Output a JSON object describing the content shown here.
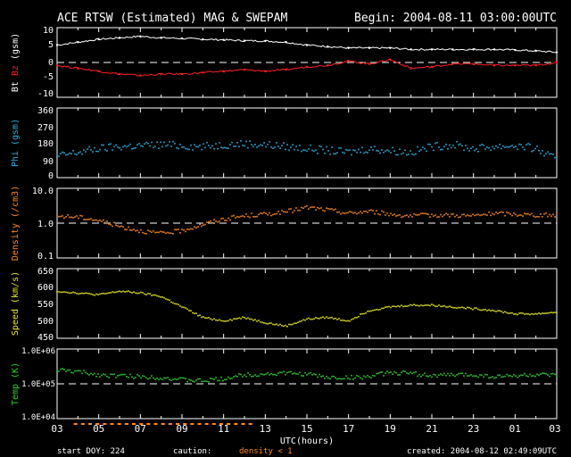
{
  "header": {
    "title": "ACE RTSW (Estimated) MAG & SWEPAM",
    "begin": "Begin: 2004-08-11 03:00:00UTC"
  },
  "footer": {
    "start_doy": "start DOY: 224",
    "caution": "caution:",
    "density_note": "density < 1",
    "created": "created: 2004-08-12 02:49:09UTC"
  },
  "x_axis": {
    "label": "UTC(hours)",
    "tick_labels": [
      "03",
      "05",
      "07",
      "09",
      "11",
      "13",
      "15",
      "17",
      "19",
      "21",
      "23",
      "01",
      "03"
    ]
  },
  "colors": {
    "bt": "#ffffff",
    "bz": "#ff2020",
    "phi": "#30b0e0",
    "density": "#ff8a20",
    "speed": "#e8e820",
    "temp": "#30d030",
    "axis": "#ffffff",
    "caution": "#ff8a20"
  },
  "panels": {
    "mag": {
      "ylabel_prefix": "Bt  ",
      "ylabel_bz": "Bz",
      "ylabel_suffix": "  (gsm)",
      "ticks": [
        "10",
        "5",
        "0",
        "-5",
        "-10"
      ]
    },
    "phi": {
      "ylabel": "Phi (gsm)",
      "ticks": [
        "360",
        "270",
        "180",
        "90",
        "0"
      ]
    },
    "density": {
      "ylabel": "Density (/cm3)",
      "ticks": [
        "10.0",
        "1.0",
        "0.1"
      ]
    },
    "speed": {
      "ylabel": "Speed (km/s)",
      "ticks": [
        "650",
        "600",
        "550",
        "500",
        "450"
      ]
    },
    "temp": {
      "ylabel": "Temp (K)",
      "ticks": [
        "1.0E+06",
        "1.0E+05",
        "1.0E+04"
      ]
    }
  },
  "chart_data": [
    {
      "type": "line",
      "ylim": [
        -12,
        12
      ],
      "reference_line": 0,
      "series": [
        {
          "name": "Bt",
          "x": [
            0,
            1,
            2,
            3,
            4,
            5,
            6,
            7,
            8,
            9,
            10,
            11,
            12,
            13,
            14,
            15,
            16,
            17,
            18,
            19,
            20,
            21,
            22,
            23,
            24
          ],
          "values": [
            6,
            7,
            8,
            8.5,
            9,
            8.5,
            8.3,
            8,
            7.8,
            7.5,
            7.4,
            7,
            6,
            5.5,
            5,
            5,
            5,
            4.5,
            4.5,
            4.5,
            4.5,
            4.5,
            4.3,
            4,
            3.5
          ]
        },
        {
          "name": "Bz",
          "x": [
            0,
            1,
            2,
            3,
            4,
            5,
            6,
            7,
            8,
            9,
            10,
            11,
            12,
            13,
            14,
            15,
            16,
            17,
            18,
            19,
            20,
            21,
            22,
            23,
            24
          ],
          "values": [
            -1,
            -2,
            -3,
            -4,
            -4.5,
            -4,
            -4,
            -3.5,
            -3,
            -2.5,
            -3,
            -2.5,
            -1.5,
            -1,
            0.5,
            -0.5,
            1,
            -2,
            -1.5,
            -0.5,
            -0.5,
            -1,
            -1,
            -1,
            0
          ]
        }
      ]
    },
    {
      "type": "scatter",
      "ylim": [
        0,
        360
      ],
      "series": [
        {
          "name": "Phi",
          "x": [
            0,
            1,
            2,
            3,
            4,
            5,
            6,
            7,
            8,
            9,
            10,
            11,
            12,
            13,
            14,
            15,
            16,
            17,
            18,
            19,
            20,
            21,
            22,
            23,
            24
          ],
          "values": [
            110,
            130,
            150,
            160,
            165,
            170,
            165,
            160,
            170,
            175,
            170,
            160,
            150,
            140,
            130,
            150,
            140,
            130,
            160,
            170,
            150,
            160,
            165,
            150,
            90
          ]
        }
      ]
    },
    {
      "type": "scatter",
      "ylim": [
        0.1,
        10
      ],
      "log_scale": true,
      "reference_line": 1.0,
      "series": [
        {
          "name": "Density",
          "x": [
            0,
            1,
            2,
            3,
            4,
            5,
            6,
            7,
            8,
            9,
            10,
            11,
            12,
            13,
            14,
            15,
            16,
            17,
            18,
            19,
            20,
            21,
            22,
            23,
            24
          ],
          "values": [
            1.6,
            1.5,
            1.2,
            0.8,
            0.6,
            0.5,
            0.6,
            0.9,
            1.3,
            1.6,
            1.8,
            2.1,
            2.8,
            2.4,
            1.9,
            2.2,
            1.8,
            1.6,
            1.7,
            1.7,
            1.6,
            1.9,
            1.8,
            1.7,
            1.7
          ]
        }
      ]
    },
    {
      "type": "scatter",
      "ylim": [
        450,
        650
      ],
      "series": [
        {
          "name": "Speed",
          "x": [
            0,
            1,
            2,
            3,
            4,
            5,
            6,
            7,
            8,
            9,
            10,
            11,
            12,
            13,
            14,
            15,
            16,
            17,
            18,
            19,
            20,
            21,
            22,
            23,
            24
          ],
          "values": [
            585,
            580,
            575,
            585,
            580,
            570,
            540,
            510,
            500,
            510,
            495,
            485,
            505,
            510,
            500,
            530,
            540,
            545,
            545,
            540,
            535,
            530,
            520,
            520,
            525
          ]
        }
      ]
    },
    {
      "type": "scatter",
      "ylim": [
        10000,
        1000000
      ],
      "log_scale": true,
      "reference_line": 100000,
      "series": [
        {
          "name": "Temp",
          "x": [
            0,
            1,
            2,
            3,
            4,
            5,
            6,
            7,
            8,
            9,
            10,
            11,
            12,
            13,
            14,
            15,
            16,
            17,
            18,
            19,
            20,
            21,
            22,
            23,
            24
          ],
          "values": [
            250000,
            220000,
            180000,
            170000,
            160000,
            150000,
            130000,
            120000,
            140000,
            180000,
            190000,
            200000,
            190000,
            150000,
            150000,
            160000,
            210000,
            200000,
            170000,
            180000,
            180000,
            160000,
            170000,
            180000,
            170000
          ]
        }
      ]
    }
  ]
}
